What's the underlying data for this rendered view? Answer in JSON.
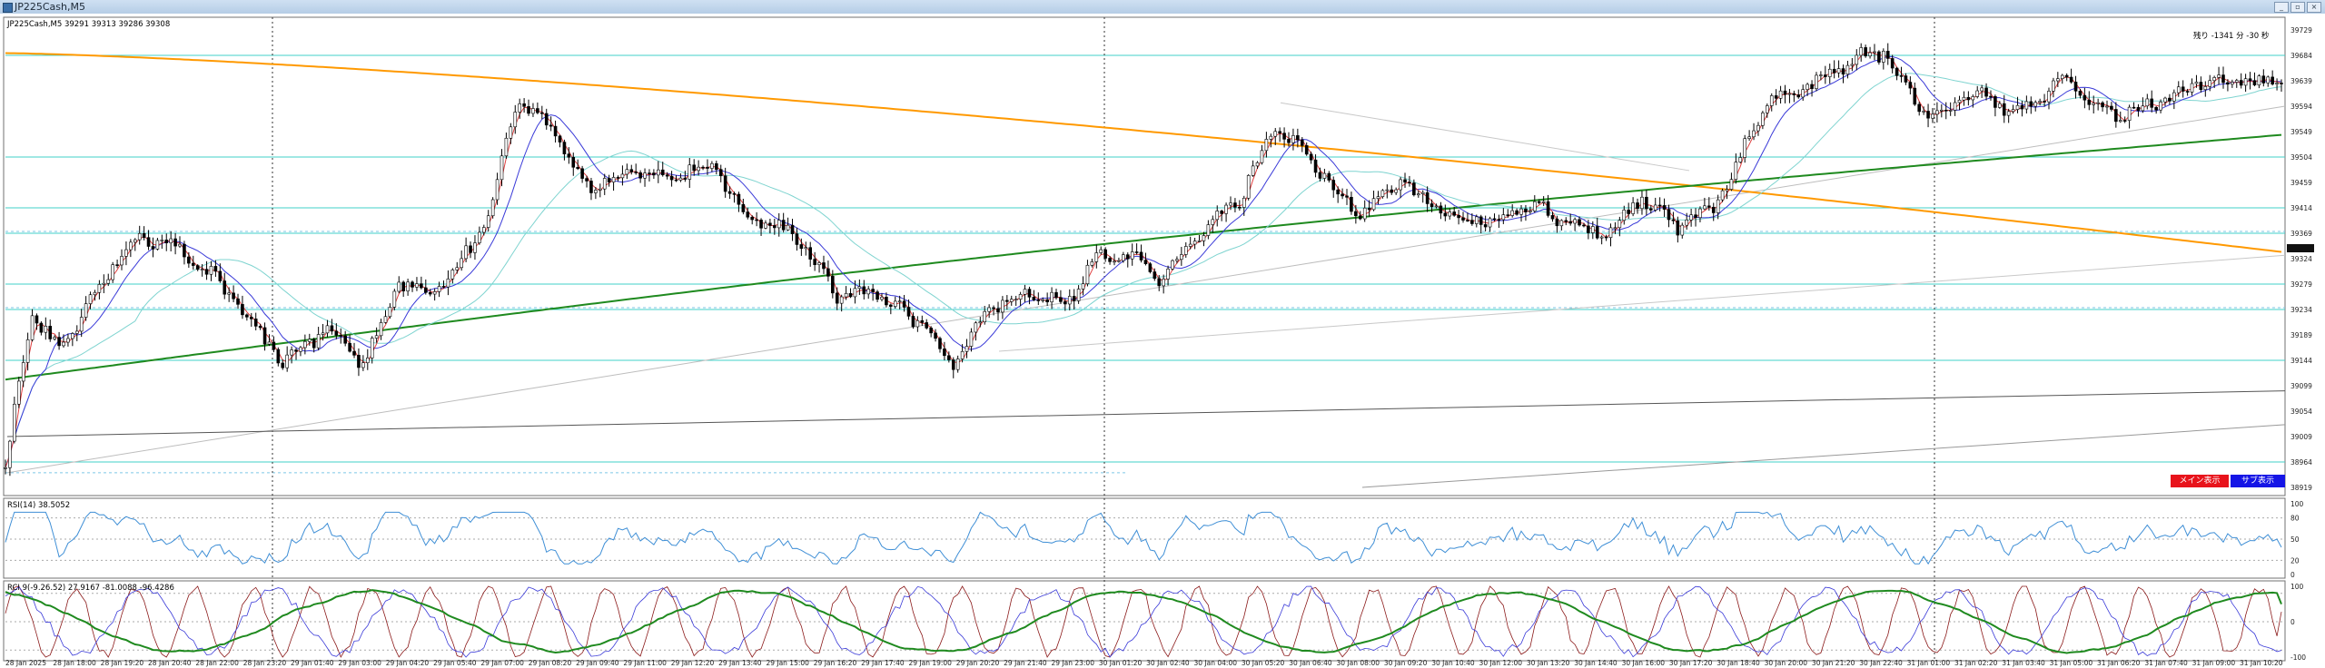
{
  "window": {
    "title": "JP225Cash,M5"
  },
  "window_buttons": [
    "_",
    "▫",
    "×"
  ],
  "main_pane": {
    "label": "JP225Cash,M5  39291 39313 39286 39308",
    "countdown": "残り -1341 分 -30 秒",
    "buttons": {
      "main_display": "メイン表示",
      "sub_display": "サブ表示"
    },
    "colors": {
      "main_display": "#e8131b",
      "sub_display": "#1515e6"
    }
  },
  "rsi_pane": {
    "label": "RSI(14) 38.5052"
  },
  "rci_pane": {
    "label": "RCI 9(-9.26.52) 27.9167 -81.0088 -96.4286"
  },
  "chart_data": [
    {
      "type": "candlestick",
      "name": "JP225Cash,M5",
      "ylim": [
        38919,
        39729
      ],
      "y_ticks": [
        39729,
        39684,
        39639,
        39594,
        39549,
        39504,
        39459,
        39414,
        39369,
        39324,
        39279,
        39234,
        39189,
        39144,
        39099,
        39054,
        39009,
        38964,
        38919
      ],
      "x": [
        "28 Jan 2025",
        "28 Jan 18:00",
        "28 Jan 19:20",
        "28 Jan 20:40",
        "28 Jan 22:00",
        "28 Jan 23:20",
        "29 Jan 01:40",
        "29 Jan 03:00",
        "29 Jan 04:20",
        "29 Jan 05:40",
        "29 Jan 07:00",
        "29 Jan 08:20",
        "29 Jan 09:40",
        "29 Jan 11:00",
        "29 Jan 12:20",
        "29 Jan 13:40",
        "29 Jan 15:00",
        "29 Jan 16:20",
        "29 Jan 17:40",
        "29 Jan 19:00",
        "29 Jan 20:20",
        "29 Jan 21:40",
        "29 Jan 23:00",
        "30 Jan 01:20",
        "30 Jan 02:40",
        "30 Jan 04:00",
        "30 Jan 05:20",
        "30 Jan 06:40",
        "30 Jan 08:00",
        "30 Jan 09:20",
        "30 Jan 10:40",
        "30 Jan 12:00",
        "30 Jan 13:20",
        "30 Jan 14:40",
        "30 Jan 16:00",
        "30 Jan 17:20",
        "30 Jan 18:40",
        "30 Jan 20:00",
        "30 Jan 21:20",
        "30 Jan 22:40",
        "31 Jan 01:00",
        "31 Jan 02:20",
        "31 Jan 03:40",
        "31 Jan 05:00",
        "31 Jan 06:20",
        "31 Jan 07:40",
        "31 Jan 09:00",
        "31 Jan 10:20"
      ],
      "close_path": [
        [
          0,
          38960
        ],
        [
          6,
          39230
        ],
        [
          12,
          39160
        ],
        [
          20,
          39260
        ],
        [
          28,
          39360
        ],
        [
          36,
          39350
        ],
        [
          46,
          39300
        ],
        [
          56,
          39200
        ],
        [
          62,
          39140
        ],
        [
          72,
          39200
        ],
        [
          80,
          39140
        ],
        [
          88,
          39280
        ],
        [
          98,
          39270
        ],
        [
          108,
          39400
        ],
        [
          114,
          39600
        ],
        [
          122,
          39560
        ],
        [
          130,
          39450
        ],
        [
          140,
          39480
        ],
        [
          150,
          39470
        ],
        [
          158,
          39490
        ],
        [
          166,
          39400
        ],
        [
          176,
          39370
        ],
        [
          186,
          39260
        ],
        [
          196,
          39260
        ],
        [
          206,
          39200
        ],
        [
          212,
          39130
        ],
        [
          220,
          39240
        ],
        [
          230,
          39260
        ],
        [
          238,
          39250
        ],
        [
          244,
          39330
        ],
        [
          252,
          39330
        ],
        [
          258,
          39280
        ],
        [
          266,
          39360
        ],
        [
          276,
          39430
        ],
        [
          284,
          39560
        ],
        [
          292,
          39500
        ],
        [
          302,
          39400
        ],
        [
          312,
          39460
        ],
        [
          322,
          39400
        ],
        [
          332,
          39390
        ],
        [
          342,
          39420
        ],
        [
          350,
          39380
        ],
        [
          358,
          39370
        ],
        [
          366,
          39430
        ],
        [
          374,
          39380
        ],
        [
          382,
          39410
        ],
        [
          394,
          39600
        ],
        [
          406,
          39640
        ],
        [
          414,
          39680
        ],
        [
          420,
          39690
        ],
        [
          430,
          39570
        ],
        [
          440,
          39620
        ],
        [
          450,
          39580
        ],
        [
          460,
          39640
        ],
        [
          472,
          39580
        ],
        [
          482,
          39600
        ],
        [
          490,
          39630
        ],
        [
          500,
          39640
        ],
        [
          509,
          39640
        ]
      ],
      "horizontal_levels": [
        39684,
        39504,
        39414,
        39369,
        39279,
        39234,
        39144,
        38964
      ],
      "series": [
        {
          "name": "",
          "color": "#ff9900",
          "start": 39688,
          "end": 39336
        },
        {
          "name": "",
          "color": "#1f8a1f",
          "start": 39110,
          "end": 39545
        }
      ]
    },
    {
      "type": "line",
      "name": "RSI(14)",
      "value": 38.5052,
      "ylim": [
        0,
        100
      ],
      "y_ticks": [
        100,
        80,
        50,
        20,
        0
      ],
      "levels": [
        80,
        50,
        20
      ]
    },
    {
      "type": "line",
      "name": "RCI",
      "values": [
        27.9167,
        -81.0088,
        -96.4286
      ],
      "ylim": [
        -100,
        100
      ],
      "y_ticks": [
        100,
        0,
        -100
      ],
      "levels": [
        80,
        0,
        -80
      ]
    }
  ]
}
